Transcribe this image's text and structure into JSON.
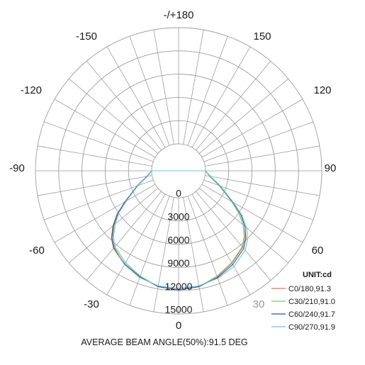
{
  "chart_data": {
    "type": "polar-line",
    "angle_labels": [
      {
        "deg": 180,
        "text": "-/+180"
      },
      {
        "deg": -150,
        "text": "-150"
      },
      {
        "deg": 150,
        "text": "150"
      },
      {
        "deg": -120,
        "text": "-120"
      },
      {
        "deg": 120,
        "text": "120"
      },
      {
        "deg": -90,
        "text": "-90"
      },
      {
        "deg": 90,
        "text": "90"
      },
      {
        "deg": -60,
        "text": "-60"
      },
      {
        "deg": 60,
        "text": "60"
      },
      {
        "deg": -30,
        "text": "-30"
      },
      {
        "deg": 30,
        "text": "30"
      },
      {
        "deg": 0,
        "text": "0"
      }
    ],
    "radial_ticks": [
      0,
      3000,
      6000,
      9000,
      12000,
      15000
    ],
    "radial_range": [
      0,
      15000
    ],
    "unit_label": "UNIT:cd",
    "grid": true,
    "legend_position": "bottom-right",
    "series": [
      {
        "name": "C0/180,91.3",
        "color": "#e8734a",
        "angles": [
          0,
          10,
          20,
          30,
          40,
          45,
          50,
          55,
          60,
          70,
          80,
          90
        ],
        "left": [
          11900,
          11700,
          11100,
          10500,
          9600,
          8800,
          7600,
          6200,
          4500,
          2200,
          700,
          0
        ],
        "right": [
          11900,
          11700,
          11100,
          10300,
          9400,
          8600,
          7400,
          6000,
          4400,
          2100,
          600,
          0
        ]
      },
      {
        "name": "C30/210,91.0",
        "color": "#7cc576",
        "angles": [
          0,
          10,
          20,
          30,
          40,
          45,
          50,
          55,
          60,
          70,
          80,
          90
        ],
        "left": [
          11900,
          11700,
          11000,
          10200,
          9300,
          8500,
          7400,
          6000,
          4400,
          2100,
          600,
          0
        ],
        "right": [
          11900,
          11700,
          11000,
          10200,
          9300,
          8500,
          7400,
          6000,
          4400,
          2100,
          600,
          0
        ]
      },
      {
        "name": "C60/240,91.7",
        "color": "#2f5597",
        "angles": [
          0,
          10,
          20,
          30,
          40,
          45,
          50,
          55,
          60,
          70,
          80,
          90
        ],
        "left": [
          11900,
          11700,
          11100,
          10400,
          9500,
          8700,
          7500,
          6100,
          4500,
          2200,
          650,
          0
        ],
        "right": [
          11900,
          11700,
          11200,
          10500,
          9600,
          8800,
          7700,
          6300,
          4600,
          2200,
          650,
          0
        ]
      },
      {
        "name": "C90/270,91.9",
        "color": "#6fc1dd",
        "angles": [
          0,
          10,
          20,
          30,
          40,
          45,
          50,
          55,
          60,
          70,
          80,
          90
        ],
        "left": [
          11700,
          11600,
          11200,
          10500,
          9400,
          8400,
          7200,
          5900,
          4300,
          2100,
          600,
          0
        ],
        "right": [
          11700,
          11600,
          11300,
          10800,
          9900,
          9100,
          8000,
          6500,
          4700,
          2300,
          700,
          0
        ]
      }
    ]
  },
  "footer": {
    "beam_angle_text": "AVERAGE BEAM ANGLE(50%):91.5 DEG"
  }
}
